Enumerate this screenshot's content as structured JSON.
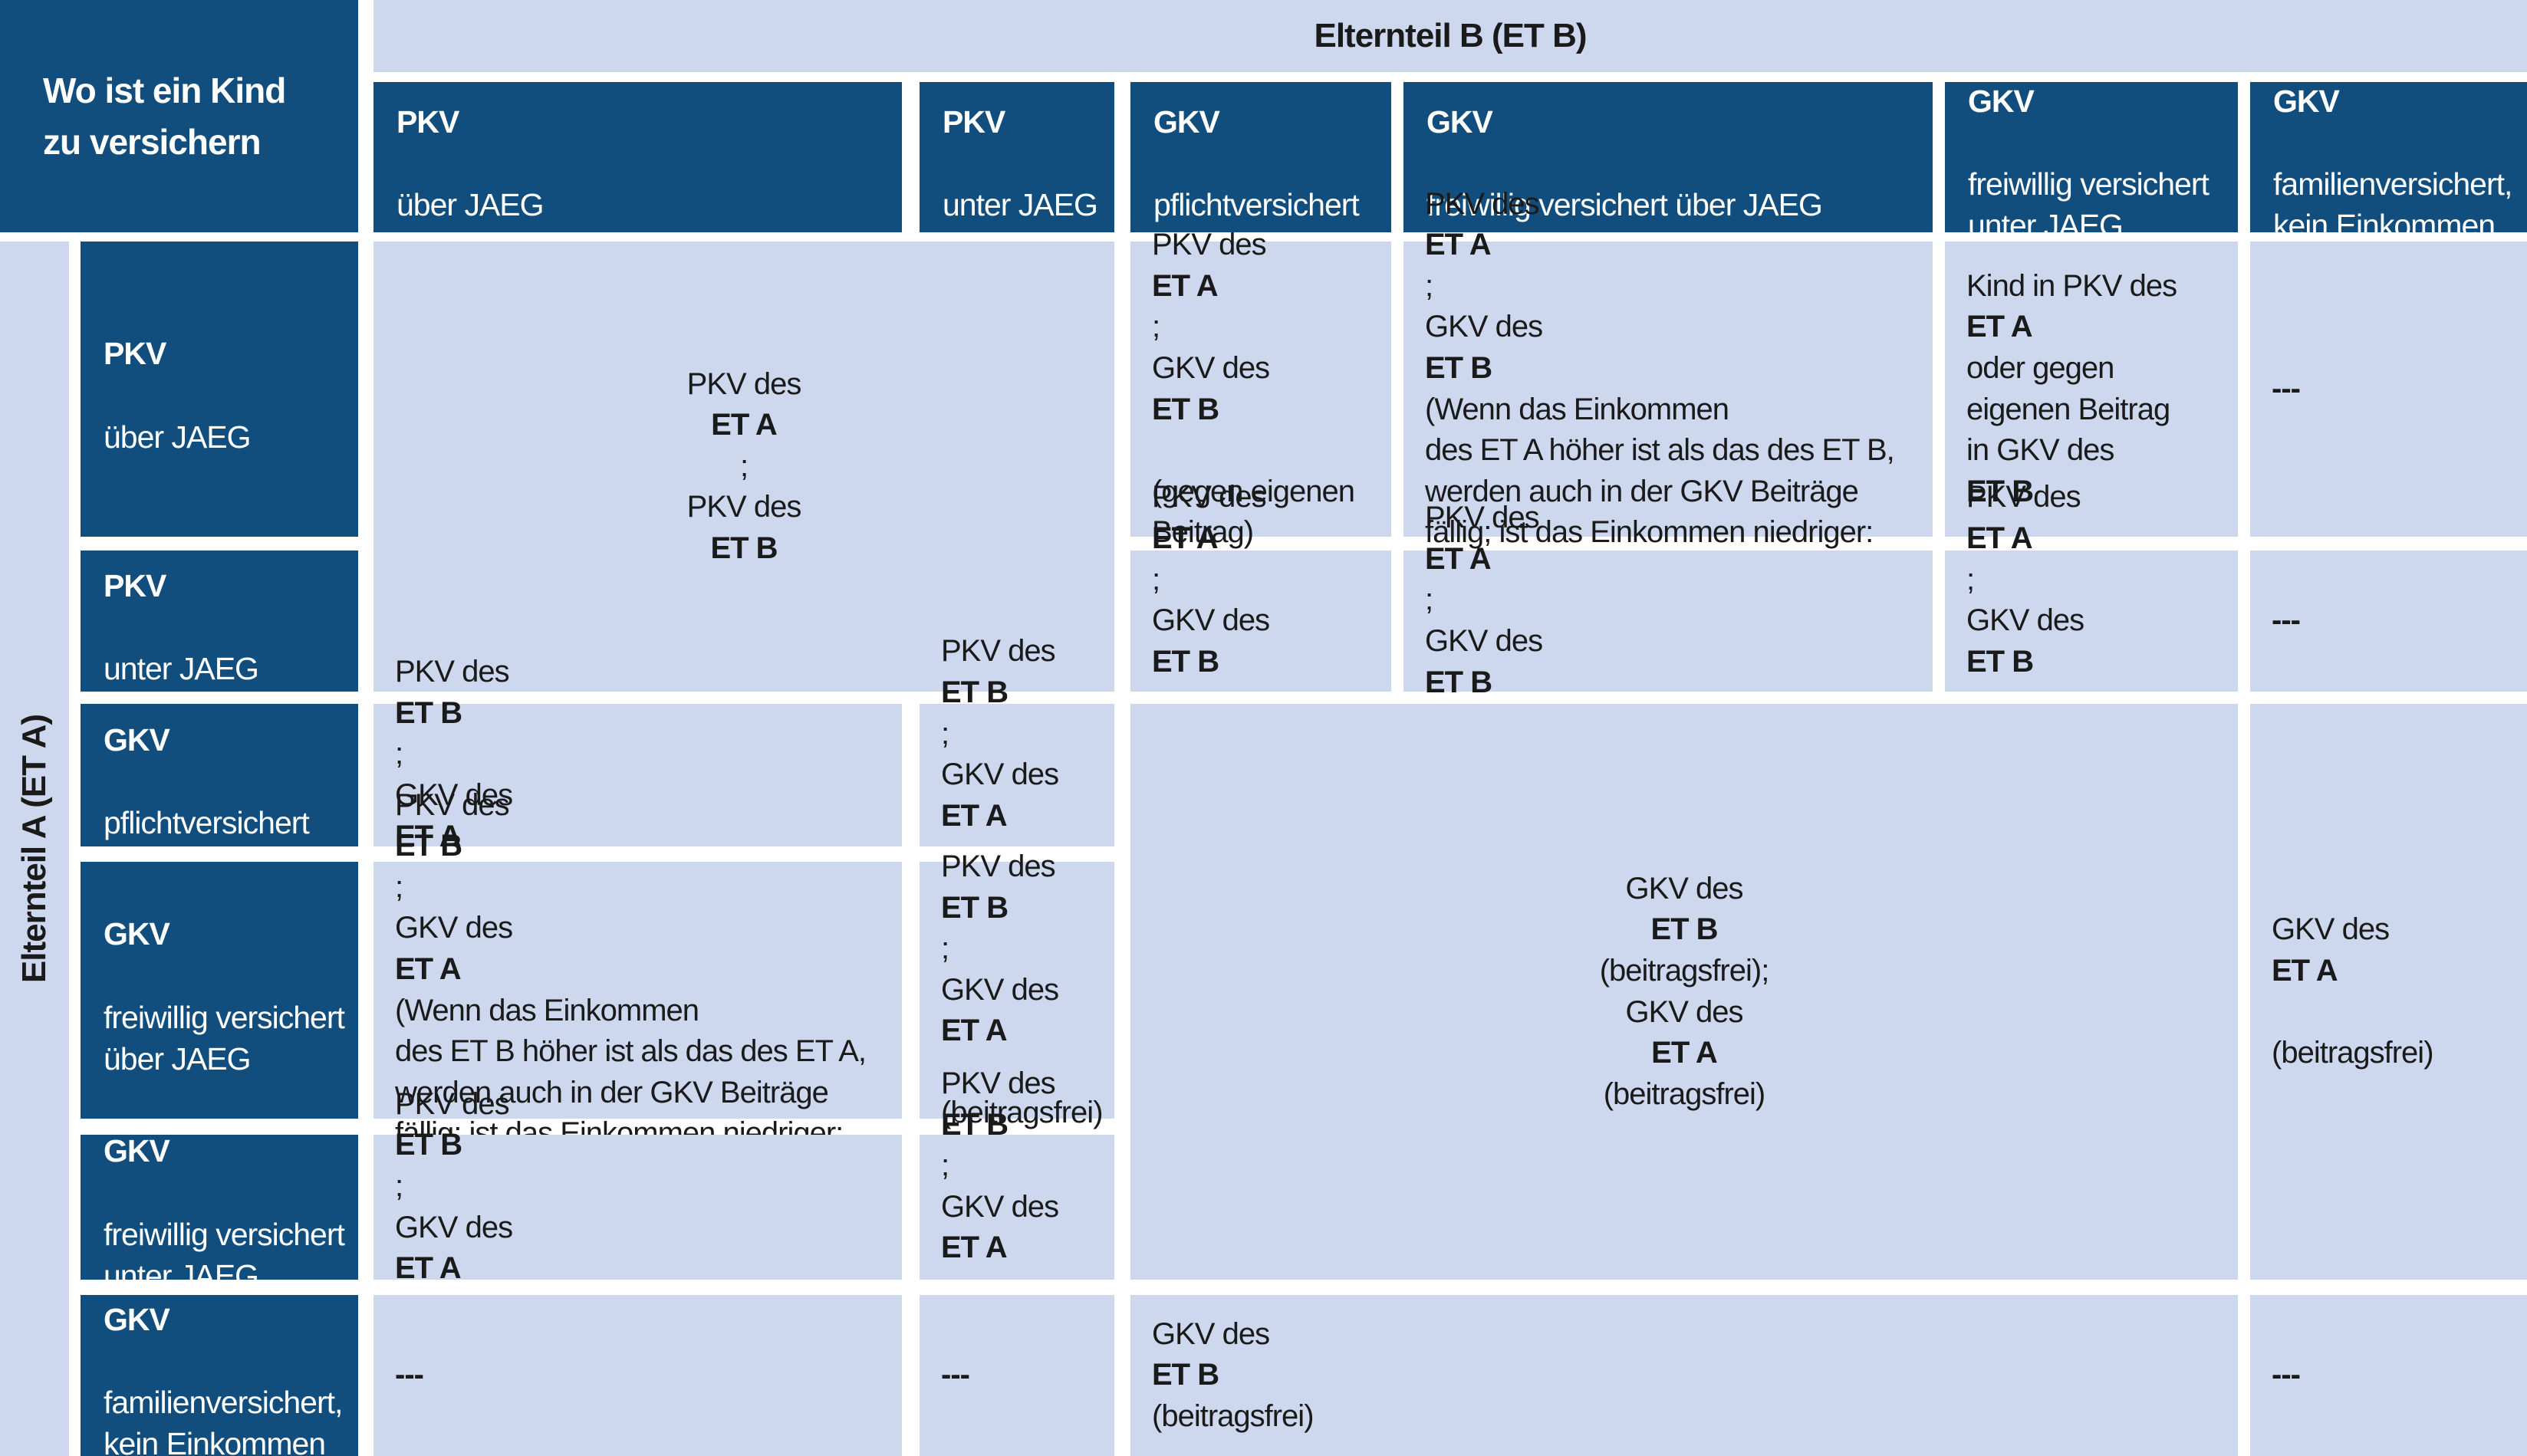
{
  "colors": {
    "dark_blue": "#114e7e",
    "light_blue": "#cdd8ee",
    "text_dark": "#1a1a1a",
    "text_light": "#ffffff",
    "gap_white": "#ffffff"
  },
  "corner_title": "Wo ist ein Kind\nzu versichern",
  "parent_b_label": "Elternteil B (ET B)",
  "parent_a_label": "Elternteil A (ET A)",
  "col_headers": [
    "**PKV**\nüber JAEG",
    "**PKV**\nunter JAEG",
    "**GKV**\npflichtversichert",
    "**GKV**\nfreiwillig versichert über JAEG",
    "**GKV**\nfreiwillig versichert\nunter JAEG",
    "**GKV**\nfamilienversichert,\nkein Einkommen"
  ],
  "row_headers": [
    "**PKV**\nüber JAEG",
    "**PKV**\nunter JAEG",
    "**GKV**\npflichtversichert",
    "**GKV**\nfreiwillig versichert\nüber JAEG",
    "**GKV**\nfreiwillig versichert\nunter JAEG",
    "**GKV**\nfamilienversichert,\nkein Einkommen"
  ],
  "cells": {
    "pkv_both_merged": "PKV des **ET A**;\nPKV des **ET B**",
    "r1c3": "PKV des **ET A**;\nGKV des **ET B**\n(gegen eigenen\nBeitrag)",
    "r1c4": "PKV des **ET A**;\nGKV des **ET B** (Wenn das Einkommen\ndes ET A höher ist als das des ET B,\nwerden auch in der GKV Beiträge\nfällig; ist das Einkommen niedriger:\nbeitragsfreie Mitversicherung)",
    "r1c5": "Kind in PKV des\n**ET A** oder gegen\neigenen Beitrag\nin GKV des **ET B**",
    "r2c3": "PKV des **ET A**;\nGKV des **ET B**\n(beitragsfrei)",
    "r2c4": "PKV des **ET A**;\nGKV des **ET B** (beitragsfrei)",
    "r2c5": "PKV des **ET A**;\nGKV des **ET B**\n(beitragsfrei)",
    "r3c1": "PKV des **ET B**;\nGKV des **ET A** (gegen eigenen Beitrag)",
    "r3c2": "PKV des **ET B**;\nGKV des **ET A**\n(beitragsfrei)",
    "center_merged": "GKV des **ET B** (beitragsfrei);\nGKV des **ET A** (beitragsfrei)",
    "col6_merged": "GKV des **ET A**\n(beitragsfrei)",
    "r4c1": "PKV des **ET B**;\nGKV des **ET A** (Wenn das Einkommen\ndes ET B höher ist als das des ET A,\nwerden auch in der GKV Beiträge\nfällig; ist das Einkommen niedriger:\nbeitragsfreie Mitversicherung)",
    "r4c2": "PKV des **ET B**;\nGKV des **ET A**\n(beitragsfrei)",
    "r5c1": "PKV des **ET B**;\nGKV des **ET A** (gegen eigenen Beitrag)",
    "r5c2": "PKV des **ET B**;\nGKV des **ET A**\n(beitragsfrei)",
    "r6_center": "GKV des **ET B** (beitragsfrei)",
    "dash": "---"
  }
}
